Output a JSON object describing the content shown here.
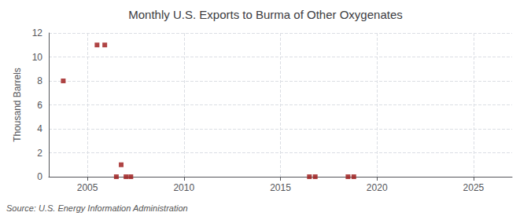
{
  "chart_data": {
    "type": "scatter",
    "title": "Monthly U.S. Exports to Burma of Other Oxygenates",
    "ylabel": "Thousand Barrels",
    "annotation": "Source: U.S. Energy Information Administration",
    "x": [
      2003.75,
      2005.5,
      2005.9,
      2006.5,
      2006.75,
      2007.0,
      2007.25,
      2016.5,
      2016.8,
      2018.5,
      2018.8
    ],
    "values": [
      8,
      11,
      11,
      0,
      1,
      0,
      0,
      0,
      0,
      0,
      0
    ],
    "color": "#9b1515",
    "marker": "square",
    "xlim": [
      2003.0,
      2027.0
    ],
    "ylim": [
      0,
      12
    ],
    "xticks": [
      2005,
      2010,
      2015,
      2020,
      2025
    ],
    "yticks": [
      0,
      2,
      4,
      6,
      8,
      10,
      12
    ],
    "grid": true
  }
}
